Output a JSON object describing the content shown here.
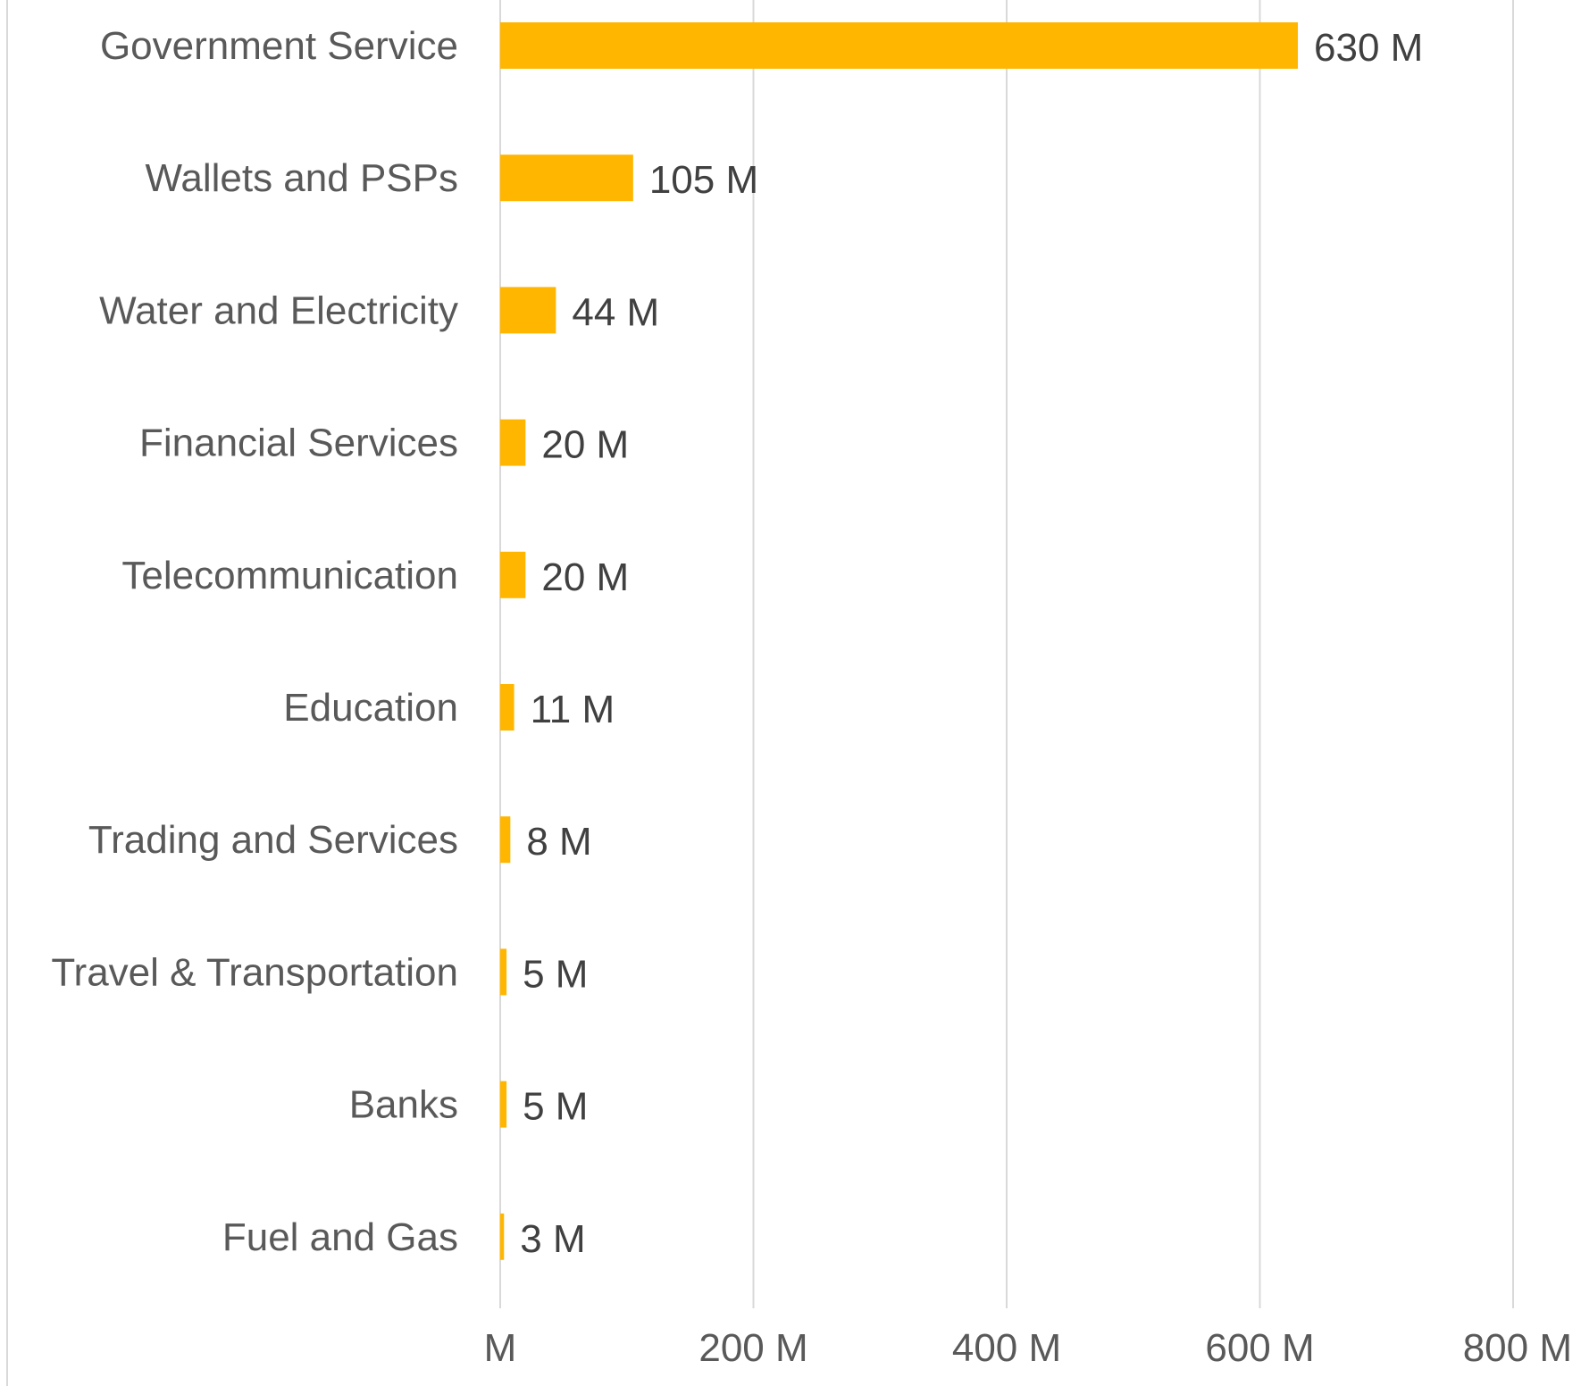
{
  "chart_data": {
    "type": "bar",
    "orientation": "horizontal",
    "categories": [
      "Government Service",
      "Wallets and PSPs",
      "Water and Electricity",
      "Financial Services",
      "Telecommunication",
      "Education",
      "Trading and Services",
      "Travel & Transportation",
      "Banks",
      "Fuel and Gas"
    ],
    "values": [
      630,
      105,
      44,
      20,
      20,
      11,
      8,
      5,
      5,
      3
    ],
    "data_labels": [
      "630 M",
      "105 M",
      "44 M",
      "20 M",
      "20 M",
      "11 M",
      "8 M",
      "5 M",
      "5 M",
      "3 M"
    ],
    "x_ticks": [
      0,
      200,
      400,
      600,
      800
    ],
    "x_tick_labels": [
      "M",
      "200 M",
      "400 M",
      "600 M",
      "800 M"
    ],
    "xlim": [
      0,
      800
    ],
    "grid": true,
    "bar_color": "#FFB600",
    "gridline_color": "#D9D9D9",
    "title": "",
    "xlabel": "",
    "ylabel": ""
  }
}
